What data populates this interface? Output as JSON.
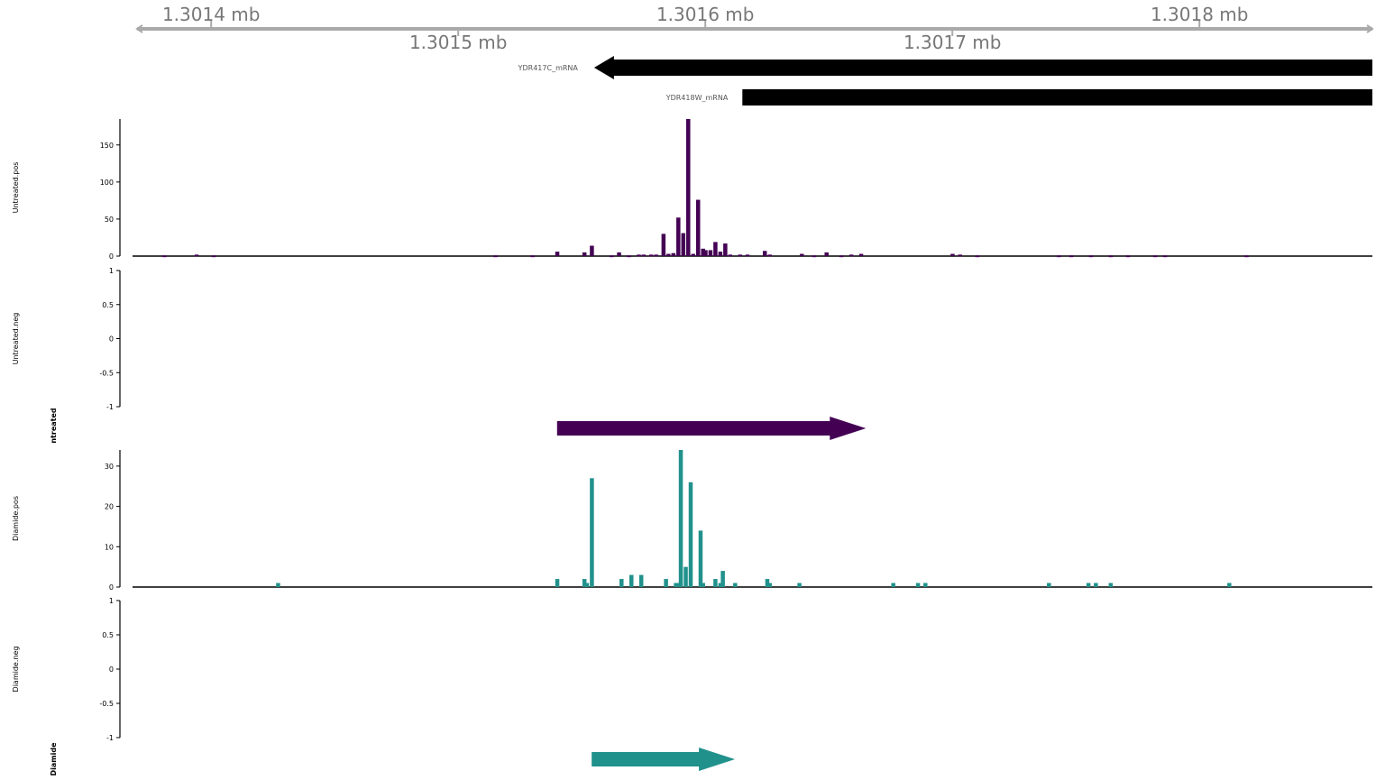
{
  "chart_data": {
    "type": "bar",
    "genome_axis": {
      "unit": "mb",
      "range": [
        1.30137,
        1.30187
      ],
      "ticks_top": [
        1.3014,
        1.3016,
        1.3018
      ],
      "ticks_bottom": [
        1.3015,
        1.3017
      ],
      "tick_labels_top": [
        "1.3014 mb",
        "1.3016 mb",
        "1.3018 mb"
      ],
      "tick_labels_bottom": [
        "1.3015 mb",
        "1.3017 mb"
      ]
    },
    "genes": [
      {
        "name": "YDR417C_mRNA",
        "strand": "-",
        "start": 1.301555,
        "end": 1.30187
      },
      {
        "name": "YDR418W_mRNA",
        "strand": "+",
        "start": 1.301615,
        "end": 1.30187
      }
    ],
    "tracks": [
      {
        "name": "Untreated.pos",
        "color": "#440154",
        "yticks": [
          0,
          50,
          100,
          150
        ],
        "ylim": [
          0,
          185
        ],
        "values": [
          [
            1.301381,
            1
          ],
          [
            1.301394,
            2
          ],
          [
            1.301401,
            1
          ],
          [
            1.301515,
            1
          ],
          [
            1.30153,
            1
          ],
          [
            1.30154,
            6
          ],
          [
            1.301551,
            5
          ],
          [
            1.301554,
            14
          ],
          [
            1.301562,
            1
          ],
          [
            1.301565,
            5
          ],
          [
            1.301569,
            1
          ],
          [
            1.301573,
            2
          ],
          [
            1.301575,
            2
          ],
          [
            1.301578,
            2
          ],
          [
            1.30158,
            2
          ],
          [
            1.301583,
            30
          ],
          [
            1.301585,
            3
          ],
          [
            1.301587,
            4
          ],
          [
            1.301589,
            52
          ],
          [
            1.301591,
            31
          ],
          [
            1.301593,
            185
          ],
          [
            1.301595,
            3
          ],
          [
            1.301597,
            76
          ],
          [
            1.301599,
            10
          ],
          [
            1.3016,
            8
          ],
          [
            1.301602,
            8
          ],
          [
            1.301604,
            19
          ],
          [
            1.301606,
            6
          ],
          [
            1.301608,
            17
          ],
          [
            1.30161,
            2
          ],
          [
            1.301614,
            2
          ],
          [
            1.301617,
            2
          ],
          [
            1.301624,
            7
          ],
          [
            1.301626,
            2
          ],
          [
            1.301639,
            3
          ],
          [
            1.301644,
            1
          ],
          [
            1.301649,
            5
          ],
          [
            1.301655,
            1
          ],
          [
            1.301659,
            2
          ],
          [
            1.301663,
            3
          ],
          [
            1.3017,
            3
          ],
          [
            1.301703,
            2
          ],
          [
            1.30171,
            1
          ],
          [
            1.301743,
            1
          ],
          [
            1.301748,
            1
          ],
          [
            1.301756,
            1
          ],
          [
            1.301764,
            1
          ],
          [
            1.301771,
            1
          ],
          [
            1.301782,
            1
          ],
          [
            1.301786,
            1
          ],
          [
            1.301819,
            1
          ]
        ],
        "arrow": {
          "strand": "+",
          "start": 1.30154,
          "end": 1.301665
        }
      },
      {
        "name": "Untreated.neg",
        "color": "#440154",
        "yticks": [
          -1,
          -0.5,
          0,
          0.5,
          1
        ],
        "ylim": [
          -1,
          1
        ],
        "values": []
      },
      {
        "name": "Diamide.pos",
        "color": "#21918c",
        "yticks": [
          0,
          10,
          20,
          30
        ],
        "ylim": [
          0,
          34
        ],
        "values": [
          [
            1.301427,
            1
          ],
          [
            1.30154,
            2
          ],
          [
            1.301551,
            2
          ],
          [
            1.301552,
            1
          ],
          [
            1.301554,
            27
          ],
          [
            1.301566,
            2
          ],
          [
            1.30157,
            3
          ],
          [
            1.301574,
            3
          ],
          [
            1.301584,
            2
          ],
          [
            1.301588,
            1
          ],
          [
            1.301589,
            1
          ],
          [
            1.30159,
            34
          ],
          [
            1.301592,
            5
          ],
          [
            1.301594,
            26
          ],
          [
            1.301598,
            14
          ],
          [
            1.301599,
            1
          ],
          [
            1.301604,
            2
          ],
          [
            1.301606,
            1
          ],
          [
            1.301607,
            4
          ],
          [
            1.301612,
            1
          ],
          [
            1.301625,
            2
          ],
          [
            1.301626,
            1
          ],
          [
            1.301638,
            1
          ],
          [
            1.301676,
            1
          ],
          [
            1.301686,
            1
          ],
          [
            1.301689,
            1
          ],
          [
            1.301739,
            1
          ],
          [
            1.301755,
            1
          ],
          [
            1.301758,
            1
          ],
          [
            1.301764,
            1
          ],
          [
            1.301812,
            1
          ]
        ],
        "arrow": {
          "strand": "+",
          "start": 1.301554,
          "end": 1.301612
        }
      },
      {
        "name": "Diamide.neg",
        "color": "#21918c",
        "yticks": [
          -1,
          -0.5,
          0,
          0.5,
          1
        ],
        "ylim": [
          -1,
          1
        ],
        "values": []
      }
    ],
    "group_labels": [
      "ntreated",
      "Diamide"
    ],
    "colors": {
      "axis_track": "#aaaaaa",
      "axis_text": "#777777",
      "gene": "#000000"
    }
  }
}
